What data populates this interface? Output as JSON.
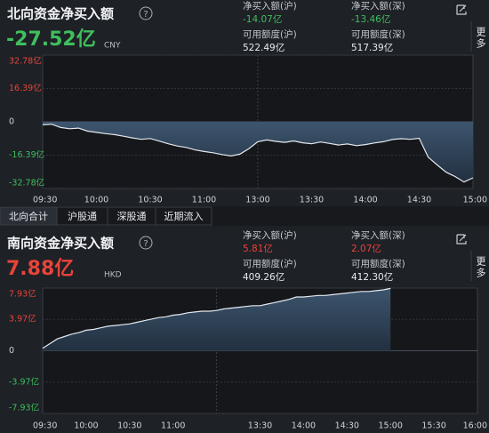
{
  "chart_data": [
    {
      "type": "area",
      "title": "北向资金净买入额",
      "headline": "-27.52亿",
      "currency": "CNY",
      "more": "更多",
      "stats": [
        {
          "label": "净买入额(沪)",
          "value": "-14.07亿"
        },
        {
          "label": "净买入额(深)",
          "value": "-13.46亿"
        },
        {
          "label": "可用额度(沪)",
          "value": "522.49亿"
        },
        {
          "label": "可用额度(深)",
          "value": "517.39亿"
        }
      ],
      "categories": [
        "09:30",
        null,
        null,
        null,
        null,
        null,
        "10:00",
        null,
        null,
        null,
        null,
        null,
        "10:30",
        null,
        null,
        null,
        null,
        null,
        "11:00",
        null,
        null,
        null,
        null,
        null,
        "13:00",
        null,
        null,
        null,
        null,
        null,
        "13:30",
        null,
        null,
        null,
        null,
        null,
        "14:00",
        null,
        null,
        null,
        null,
        null,
        "14:30",
        null,
        null,
        null,
        null,
        null,
        "15:00"
      ],
      "values": [
        -1.5,
        -1.2,
        -2.8,
        -3.4,
        -3.1,
        -4.6,
        -5.2,
        -5.8,
        -6.3,
        -7.1,
        -7.9,
        -8.6,
        -8.2,
        -9.5,
        -10.8,
        -11.9,
        -12.6,
        -13.8,
        -14.6,
        -15.2,
        -16.1,
        -16.8,
        -15.9,
        -13.2,
        -9.8,
        -8.9,
        -9.6,
        -10.1,
        -9.4,
        -10.3,
        -10.8,
        -9.9,
        -10.6,
        -11.4,
        -10.9,
        -11.7,
        -11.2,
        -10.4,
        -9.8,
        -8.7,
        -8.3,
        -8.6,
        -8.1,
        -17.4,
        -21.2,
        -24.8,
        -26.9,
        -29.6,
        -27.52
      ],
      "ylim": [
        -32.78,
        32.78
      ],
      "yticks": [
        {
          "value": 32.78,
          "label": "32.78亿"
        },
        {
          "value": 16.39,
          "label": "16.39亿"
        },
        0,
        {
          "value": -16.39,
          "label": "-16.39亿"
        },
        {
          "value": -32.78,
          "label": "-32.78亿"
        }
      ],
      "grid": true
    },
    {
      "type": "area",
      "title": "南向资金净买入额",
      "headline": "7.88亿",
      "currency": "HKD",
      "more": "更多",
      "stats": [
        {
          "label": "净买入额(沪)",
          "value": "5.81亿"
        },
        {
          "label": "净买入额(深)",
          "value": "2.07亿"
        },
        {
          "label": "可用额度(沪)",
          "value": "409.26亿"
        },
        {
          "label": "可用额度(深)",
          "value": "412.30亿"
        }
      ],
      "categories": [
        "09:30",
        null,
        null,
        null,
        null,
        null,
        "10:00",
        null,
        null,
        null,
        null,
        null,
        "10:30",
        null,
        null,
        null,
        null,
        null,
        "11:00",
        null,
        null,
        null,
        null,
        null,
        null,
        null,
        null,
        null,
        null,
        null,
        "13:30",
        null,
        null,
        null,
        null,
        null,
        "14:00",
        null,
        null,
        null,
        null,
        null,
        "14:30",
        null,
        null,
        null,
        null,
        null,
        "15:00",
        null,
        null,
        null,
        null,
        null,
        "15:30",
        null,
        null,
        null,
        null,
        null,
        "16:00"
      ],
      "values": [
        0.3,
        0.9,
        1.5,
        1.8,
        2.1,
        2.3,
        2.6,
        2.7,
        2.9,
        3.1,
        3.2,
        3.3,
        3.4,
        3.6,
        3.8,
        4.0,
        4.2,
        4.3,
        4.5,
        4.6,
        4.8,
        4.9,
        5.0,
        5.0,
        5.1,
        5.3,
        5.4,
        5.5,
        5.6,
        5.7,
        5.7,
        5.9,
        6.1,
        6.3,
        6.5,
        6.8,
        6.8,
        6.9,
        7.0,
        7.0,
        7.1,
        7.2,
        7.3,
        7.4,
        7.5,
        7.5,
        7.6,
        7.7,
        7.88,
        null,
        null,
        null,
        null,
        null,
        null,
        null,
        null,
        null,
        null,
        null,
        null
      ],
      "ylim": [
        -7.93,
        7.93
      ],
      "yticks": [
        {
          "value": 7.93,
          "label": "7.93亿"
        },
        {
          "value": 3.97,
          "label": "3.97亿"
        },
        0,
        {
          "value": -3.97,
          "label": "-3.97亿"
        },
        {
          "value": -7.93,
          "label": "-7.93亿"
        }
      ],
      "grid": true
    }
  ],
  "tabs": [
    "北向合计",
    "沪股通",
    "深股通",
    "近期流入"
  ]
}
